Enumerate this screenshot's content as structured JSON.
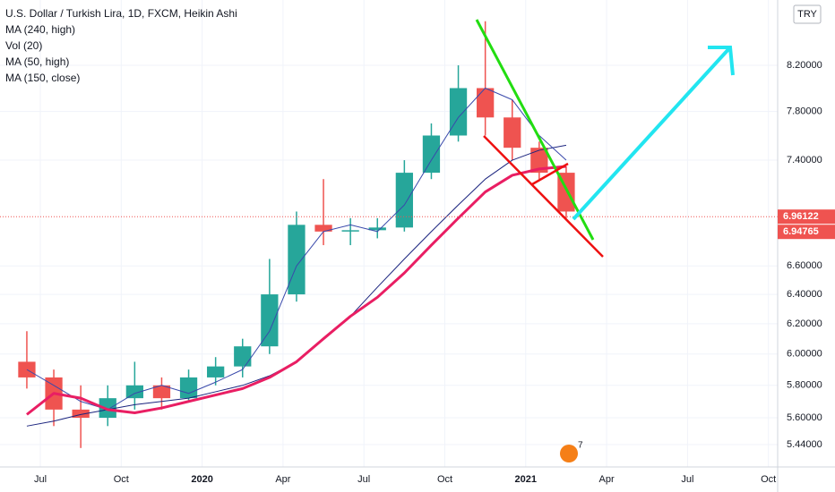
{
  "chart_data": {
    "type": "candlestick",
    "title": "U.S. Dollar / Turkish Lira, 1D, FXCM, Heikin Ashi",
    "volume_label": "Vol (20)",
    "currency": "TRY",
    "x": [
      "2019-06",
      "2019-07",
      "2019-08",
      "2019-09",
      "2019-10",
      "2019-11",
      "2019-12",
      "2020-01",
      "2020-02",
      "2020-03",
      "2020-04",
      "2020-05",
      "2020-06",
      "2020-07",
      "2020-08",
      "2020-09",
      "2020-10",
      "2020-11",
      "2020-12",
      "2021-01",
      "2021-02"
    ],
    "open": [
      5.95,
      5.85,
      5.65,
      5.6,
      5.72,
      5.8,
      5.72,
      5.85,
      5.92,
      6.05,
      6.4,
      6.9,
      6.85,
      6.86,
      6.88,
      7.3,
      7.6,
      8.0,
      7.75,
      7.5,
      7.3
    ],
    "high": [
      6.15,
      5.9,
      5.8,
      5.8,
      5.95,
      5.85,
      5.9,
      5.98,
      6.1,
      6.65,
      7.0,
      7.25,
      6.95,
      6.95,
      7.4,
      7.7,
      8.2,
      8.6,
      7.9,
      7.55,
      7.35
    ],
    "low": [
      5.78,
      5.55,
      5.42,
      5.55,
      5.65,
      5.65,
      5.7,
      5.8,
      5.85,
      6.0,
      6.35,
      6.75,
      6.75,
      6.8,
      6.85,
      7.25,
      7.55,
      7.6,
      7.4,
      7.25,
      6.95
    ],
    "close": [
      5.85,
      5.65,
      5.6,
      5.72,
      5.8,
      5.72,
      5.85,
      5.92,
      6.05,
      6.4,
      6.9,
      6.85,
      6.86,
      6.88,
      7.3,
      7.6,
      8.0,
      7.75,
      7.5,
      7.3,
      7.0
    ],
    "up_color": "#26a69a",
    "down_color": "#ef5350",
    "series": [
      {
        "name": "MA (240, high)",
        "color": "#1a237e",
        "width": 1,
        "values": [
          5.55,
          5.58,
          5.62,
          5.65,
          5.68,
          5.7,
          5.72,
          5.76,
          5.8,
          5.86,
          5.95,
          6.1,
          6.25,
          6.45,
          6.65,
          6.85,
          7.05,
          7.25,
          7.4,
          7.48,
          7.52
        ]
      },
      {
        "name": "MA (50, high)",
        "color": "#3949ab",
        "width": 1,
        "values": [
          5.9,
          5.8,
          5.7,
          5.65,
          5.75,
          5.8,
          5.75,
          5.82,
          5.9,
          6.15,
          6.6,
          6.85,
          6.9,
          6.85,
          7.05,
          7.4,
          7.75,
          8.0,
          7.9,
          7.6,
          7.4
        ]
      },
      {
        "name": "MA (150, close)",
        "color": "#e91e63",
        "width": 3,
        "values": [
          5.62,
          5.75,
          5.72,
          5.65,
          5.63,
          5.66,
          5.7,
          5.74,
          5.78,
          5.85,
          5.95,
          6.1,
          6.25,
          6.38,
          6.55,
          6.75,
          6.95,
          7.15,
          7.28,
          7.33,
          7.35
        ]
      }
    ],
    "log_scale": true,
    "grid": true,
    "ylim": [
      5.31,
      8.8
    ],
    "yticks": [
      {
        "value": 5.44,
        "label": "5.44000"
      },
      {
        "value": 5.6,
        "label": "5.60000"
      },
      {
        "value": 5.8,
        "label": "5.80000"
      },
      {
        "value": 6.0,
        "label": "6.00000"
      },
      {
        "value": 6.2,
        "label": "6.20000"
      },
      {
        "value": 6.4,
        "label": "6.40000"
      },
      {
        "value": 6.6,
        "label": "6.60000"
      },
      {
        "value": 7.4,
        "label": "7.40000"
      },
      {
        "value": 7.8,
        "label": "7.80000"
      },
      {
        "value": 8.2,
        "label": "8.20000"
      }
    ],
    "xticks": [
      {
        "value": "2019-07",
        "label": "Jul"
      },
      {
        "value": "2019-10",
        "label": "Oct"
      },
      {
        "value": "2020-01",
        "label": "2020"
      },
      {
        "value": "2020-04",
        "label": "Apr"
      },
      {
        "value": "2020-07",
        "label": "Jul"
      },
      {
        "value": "2020-10",
        "label": "Oct"
      },
      {
        "value": "2021-01",
        "label": "2021"
      },
      {
        "value": "2021-04",
        "label": "Apr"
      },
      {
        "value": "2021-07",
        "label": "Jul"
      },
      {
        "value": "2021-10",
        "label": "Oct"
      }
    ],
    "price_labels": [
      6.96122,
      6.94765
    ],
    "badge": "7"
  }
}
